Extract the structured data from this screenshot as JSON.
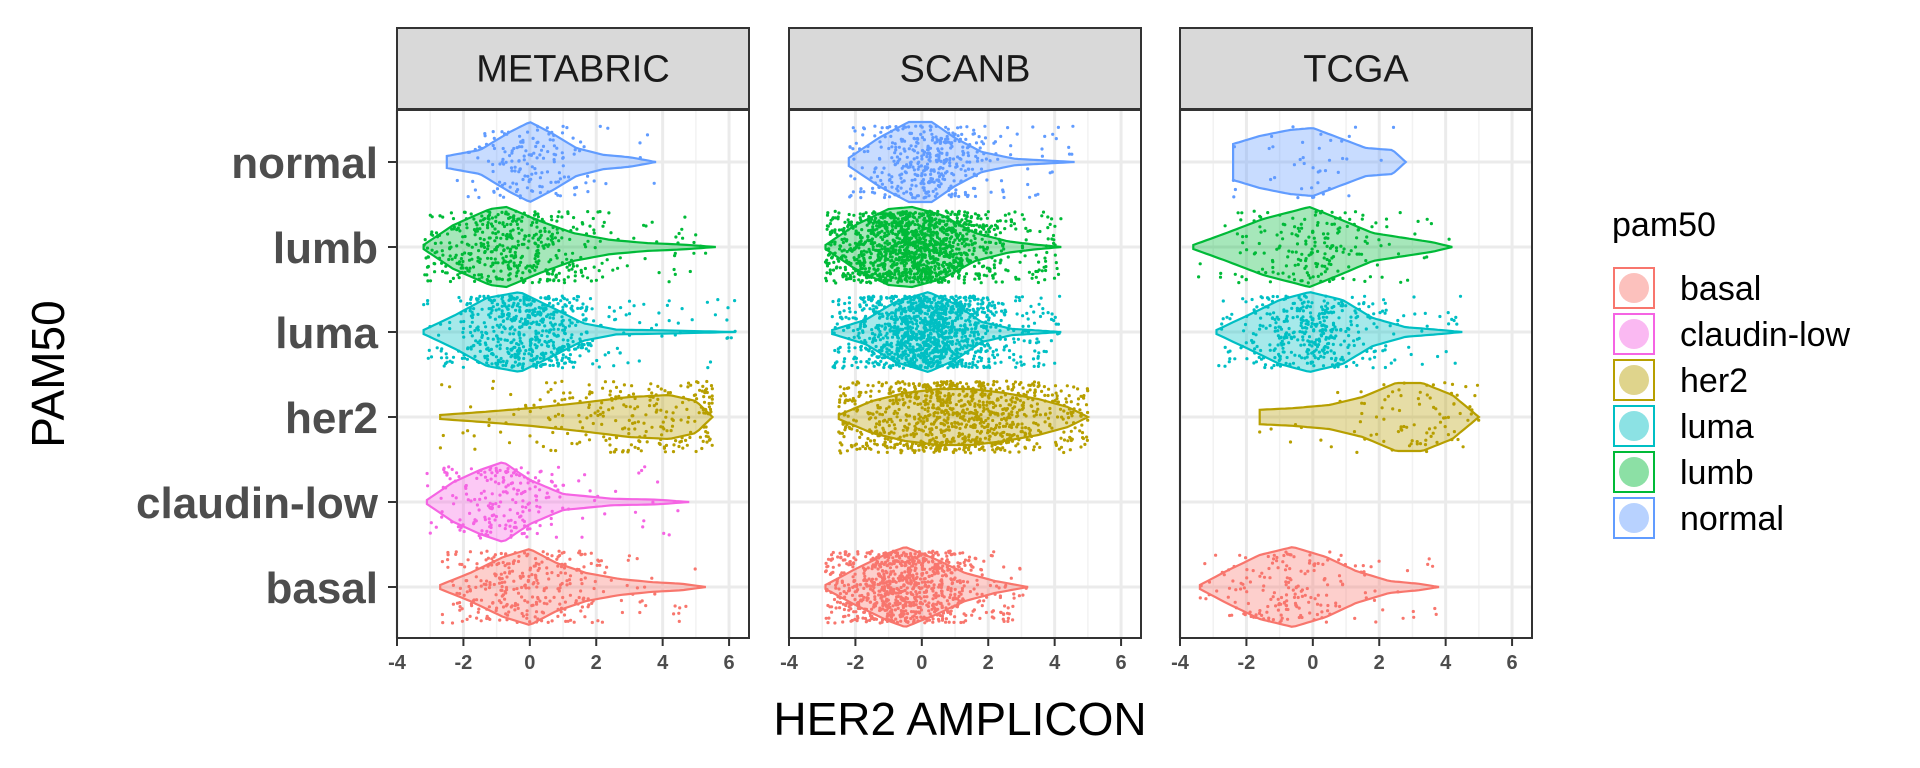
{
  "chart_data": {
    "type": "violin",
    "xlabel": "HER2 AMPLICON",
    "ylabel": "PAM50",
    "xlim": [
      -4,
      6.6
    ],
    "x_ticks": [
      "-4",
      "-2",
      "0",
      "2",
      "4",
      "6"
    ],
    "x_tick_values": [
      -4,
      -2,
      0,
      2,
      4,
      6
    ],
    "categories": [
      "normal",
      "lumb",
      "luma",
      "her2",
      "claudin-low",
      "basal"
    ],
    "panels": [
      "METABRIC",
      "SCANB",
      "TCGA"
    ],
    "grid": true,
    "legend": {
      "title": "pam50",
      "position": "right",
      "entries": [
        {
          "label": "basal",
          "color": "#F8766D"
        },
        {
          "label": "claudin-low",
          "color": "#F564E3"
        },
        {
          "label": "her2",
          "color": "#B79F00"
        },
        {
          "label": "luma",
          "color": "#00BFC4"
        },
        {
          "label": "lumb",
          "color": "#00BA38"
        },
        {
          "label": "normal",
          "color": "#619CFF"
        }
      ]
    },
    "colors": {
      "basal": "#F8766D",
      "claudin-low": "#F564E3",
      "her2": "#B79F00",
      "luma": "#00BFC4",
      "lumb": "#00BA38",
      "normal": "#619CFF"
    },
    "series": [
      {
        "panel": "METABRIC",
        "category": "normal",
        "range": [
          -2.5,
          3.8
        ],
        "peak": 0.0,
        "spread": 0.9,
        "n": 160,
        "profile": [
          [
            -2.5,
            0.15
          ],
          [
            -1.5,
            0.3
          ],
          [
            -0.6,
            0.75
          ],
          [
            0.0,
            1.0
          ],
          [
            0.7,
            0.7
          ],
          [
            1.4,
            0.35
          ],
          [
            2.2,
            0.18
          ],
          [
            3.0,
            0.12
          ],
          [
            3.8,
            0.0
          ]
        ]
      },
      {
        "panel": "METABRIC",
        "category": "lumb",
        "range": [
          -3.2,
          5.6
        ],
        "peak": -0.8,
        "spread": 1.3,
        "n": 480,
        "profile": [
          [
            -3.2,
            0.05
          ],
          [
            -2.3,
            0.55
          ],
          [
            -1.2,
            0.95
          ],
          [
            -0.7,
            1.0
          ],
          [
            0.3,
            0.65
          ],
          [
            1.3,
            0.35
          ],
          [
            2.4,
            0.18
          ],
          [
            3.5,
            0.1
          ],
          [
            4.6,
            0.06
          ],
          [
            5.6,
            0.0
          ]
        ]
      },
      {
        "panel": "METABRIC",
        "category": "luma",
        "range": [
          -3.2,
          6.2
        ],
        "peak": -0.2,
        "spread": 1.1,
        "n": 620,
        "profile": [
          [
            -3.2,
            0.05
          ],
          [
            -2.3,
            0.4
          ],
          [
            -1.3,
            0.85
          ],
          [
            -0.3,
            1.0
          ],
          [
            0.7,
            0.6
          ],
          [
            1.6,
            0.22
          ],
          [
            2.6,
            0.06
          ],
          [
            4.0,
            0.04
          ],
          [
            6.2,
            0.0
          ]
        ]
      },
      {
        "panel": "METABRIC",
        "category": "her2",
        "range": [
          -2.7,
          5.5
        ],
        "peak": 3.0,
        "spread": 1.8,
        "n": 260,
        "profile": [
          [
            -2.7,
            0.05
          ],
          [
            -1.5,
            0.12
          ],
          [
            0.0,
            0.22
          ],
          [
            1.5,
            0.35
          ],
          [
            3.0,
            0.5
          ],
          [
            4.2,
            0.55
          ],
          [
            5.0,
            0.4
          ],
          [
            5.5,
            0.0
          ]
        ]
      },
      {
        "panel": "METABRIC",
        "category": "claudin-low",
        "range": [
          -3.1,
          4.8
        ],
        "peak": -0.8,
        "spread": 1.0,
        "n": 230,
        "profile": [
          [
            -3.1,
            0.05
          ],
          [
            -2.3,
            0.5
          ],
          [
            -1.5,
            0.8
          ],
          [
            -0.8,
            1.0
          ],
          [
            0.0,
            0.55
          ],
          [
            1.0,
            0.2
          ],
          [
            2.5,
            0.08
          ],
          [
            3.8,
            0.06
          ],
          [
            4.8,
            0.0
          ]
        ]
      },
      {
        "panel": "METABRIC",
        "category": "basal",
        "range": [
          -2.7,
          5.3
        ],
        "peak": -0.1,
        "spread": 1.3,
        "n": 330,
        "profile": [
          [
            -2.7,
            0.05
          ],
          [
            -1.8,
            0.35
          ],
          [
            -0.8,
            0.75
          ],
          [
            0.0,
            0.95
          ],
          [
            0.8,
            0.6
          ],
          [
            1.7,
            0.35
          ],
          [
            2.7,
            0.2
          ],
          [
            3.7,
            0.12
          ],
          [
            4.6,
            0.08
          ],
          [
            5.3,
            0.0
          ]
        ]
      },
      {
        "panel": "SCANB",
        "category": "normal",
        "range": [
          -2.2,
          4.6
        ],
        "peak": 0.1,
        "spread": 1.0,
        "n": 420,
        "profile": [
          [
            -2.2,
            0.1
          ],
          [
            -1.3,
            0.6
          ],
          [
            -0.4,
            1.0
          ],
          [
            0.3,
            1.0
          ],
          [
            1.0,
            0.6
          ],
          [
            1.8,
            0.25
          ],
          [
            2.8,
            0.08
          ],
          [
            4.6,
            0.0
          ]
        ]
      },
      {
        "panel": "SCANB",
        "category": "lumb",
        "range": [
          -2.9,
          4.2
        ],
        "peak": -0.3,
        "spread": 1.2,
        "n": 1400,
        "profile": [
          [
            -2.9,
            0.05
          ],
          [
            -2.0,
            0.55
          ],
          [
            -1.0,
            0.95
          ],
          [
            -0.3,
            1.0
          ],
          [
            0.6,
            0.8
          ],
          [
            1.6,
            0.35
          ],
          [
            2.6,
            0.14
          ],
          [
            3.4,
            0.06
          ],
          [
            4.2,
            0.0
          ]
        ]
      },
      {
        "panel": "SCANB",
        "category": "luma",
        "range": [
          -2.7,
          4.2
        ],
        "peak": 0.2,
        "spread": 1.1,
        "n": 1300,
        "profile": [
          [
            -2.7,
            0.05
          ],
          [
            -1.7,
            0.3
          ],
          [
            -0.8,
            0.75
          ],
          [
            0.2,
            1.0
          ],
          [
            1.0,
            0.7
          ],
          [
            1.8,
            0.25
          ],
          [
            2.7,
            0.08
          ],
          [
            4.2,
            0.0
          ]
        ]
      },
      {
        "panel": "SCANB",
        "category": "her2",
        "range": [
          -2.5,
          5.0
        ],
        "peak": 1.0,
        "spread": 1.8,
        "n": 1000,
        "profile": [
          [
            -2.5,
            0.05
          ],
          [
            -1.5,
            0.4
          ],
          [
            -0.5,
            0.6
          ],
          [
            0.5,
            0.7
          ],
          [
            1.5,
            0.7
          ],
          [
            2.5,
            0.6
          ],
          [
            3.5,
            0.45
          ],
          [
            4.4,
            0.25
          ],
          [
            5.0,
            0.0
          ]
        ]
      },
      {
        "panel": "SCANB",
        "category": "basal",
        "range": [
          -2.9,
          3.2
        ],
        "peak": -0.5,
        "spread": 1.1,
        "n": 900,
        "profile": [
          [
            -2.9,
            0.05
          ],
          [
            -2.0,
            0.45
          ],
          [
            -1.0,
            0.85
          ],
          [
            -0.5,
            1.0
          ],
          [
            0.4,
            0.7
          ],
          [
            1.3,
            0.35
          ],
          [
            2.2,
            0.15
          ],
          [
            3.2,
            0.0
          ]
        ]
      },
      {
        "panel": "TCGA",
        "category": "normal",
        "range": [
          -2.4,
          2.8
        ],
        "peak": 0.0,
        "spread": 1.2,
        "n": 40,
        "profile": [
          [
            -2.4,
            0.45
          ],
          [
            -1.6,
            0.65
          ],
          [
            -0.7,
            0.8
          ],
          [
            0.0,
            0.85
          ],
          [
            0.8,
            0.6
          ],
          [
            1.6,
            0.35
          ],
          [
            2.4,
            0.3
          ],
          [
            2.8,
            0.0
          ]
        ]
      },
      {
        "panel": "TCGA",
        "category": "lumb",
        "range": [
          -3.6,
          4.2
        ],
        "peak": -0.1,
        "spread": 1.1,
        "n": 200,
        "profile": [
          [
            -3.6,
            0.05
          ],
          [
            -2.6,
            0.35
          ],
          [
            -1.5,
            0.7
          ],
          [
            -0.1,
            1.0
          ],
          [
            0.8,
            0.7
          ],
          [
            1.8,
            0.35
          ],
          [
            2.8,
            0.22
          ],
          [
            3.6,
            0.12
          ],
          [
            4.2,
            0.0
          ]
        ]
      },
      {
        "panel": "TCGA",
        "category": "luma",
        "range": [
          -2.9,
          4.5
        ],
        "peak": -0.1,
        "spread": 1.1,
        "n": 420,
        "profile": [
          [
            -2.9,
            0.05
          ],
          [
            -2.0,
            0.4
          ],
          [
            -1.0,
            0.8
          ],
          [
            -0.1,
            1.0
          ],
          [
            0.9,
            0.8
          ],
          [
            1.8,
            0.35
          ],
          [
            2.8,
            0.12
          ],
          [
            3.7,
            0.06
          ],
          [
            4.5,
            0.0
          ]
        ]
      },
      {
        "panel": "TCGA",
        "category": "her2",
        "range": [
          -1.6,
          5.0
        ],
        "peak": 2.8,
        "spread": 1.3,
        "n": 90,
        "profile": [
          [
            -1.6,
            0.18
          ],
          [
            -0.6,
            0.22
          ],
          [
            0.5,
            0.3
          ],
          [
            1.5,
            0.5
          ],
          [
            2.5,
            0.85
          ],
          [
            3.3,
            0.85
          ],
          [
            4.2,
            0.55
          ],
          [
            5.0,
            0.0
          ]
        ]
      },
      {
        "panel": "TCGA",
        "category": "basal",
        "range": [
          -3.4,
          3.8
        ],
        "peak": -0.6,
        "spread": 1.1,
        "n": 190,
        "profile": [
          [
            -3.4,
            0.05
          ],
          [
            -2.6,
            0.4
          ],
          [
            -1.6,
            0.8
          ],
          [
            -0.6,
            1.0
          ],
          [
            0.4,
            0.75
          ],
          [
            1.3,
            0.4
          ],
          [
            2.3,
            0.15
          ],
          [
            3.2,
            0.08
          ],
          [
            3.8,
            0.0
          ]
        ]
      }
    ]
  }
}
